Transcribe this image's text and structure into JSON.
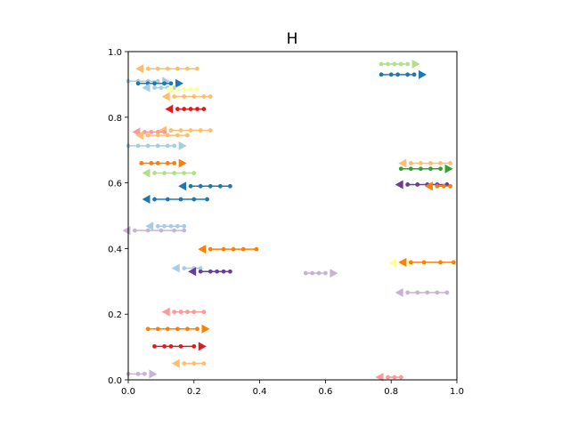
{
  "chart_data": {
    "type": "line",
    "title": "H",
    "xlabel": "",
    "ylabel": "",
    "xlim": [
      0,
      1
    ],
    "ylim": [
      0,
      1
    ],
    "grid": false,
    "xticks": [
      "0.0",
      "0.2",
      "0.4",
      "0.6",
      "0.8",
      "1.0"
    ],
    "yticks": [
      "0.0",
      "0.2",
      "0.4",
      "0.6",
      "0.8",
      "1.0"
    ],
    "series": [
      {
        "color": "#fdbf6f",
        "x": [
          0.06,
          0.09,
          0.12,
          0.15,
          0.18,
          0.21
        ],
        "y": [
          0.948,
          0.948,
          0.948,
          0.948,
          0.948,
          0.948
        ],
        "arrow": "left"
      },
      {
        "color": "#a6cee3",
        "x": [
          0.0,
          0.03,
          0.06,
          0.09
        ],
        "y": [
          0.91,
          0.91,
          0.91,
          0.91
        ],
        "arrow": "right"
      },
      {
        "color": "#1f78b4",
        "x": [
          0.03,
          0.06,
          0.08,
          0.11,
          0.13
        ],
        "y": [
          0.903,
          0.903,
          0.903,
          0.903,
          0.903
        ],
        "arrow": "right"
      },
      {
        "color": "#a6cee3",
        "x": [
          0.08,
          0.1,
          0.12,
          0.14
        ],
        "y": [
          0.89,
          0.89,
          0.89,
          0.89
        ],
        "arrow": "left"
      },
      {
        "color": "#ffff99",
        "x": [
          0.15,
          0.17,
          0.19,
          0.21
        ],
        "y": [
          0.885,
          0.885,
          0.885,
          0.885
        ],
        "arrow": "left"
      },
      {
        "color": "#fdbf6f",
        "x": [
          0.14,
          0.17,
          0.2,
          0.23,
          0.25
        ],
        "y": [
          0.863,
          0.863,
          0.863,
          0.863,
          0.863
        ],
        "arrow": "left"
      },
      {
        "color": "#e31a1c",
        "x": [
          0.15,
          0.17,
          0.19,
          0.21,
          0.23
        ],
        "y": [
          0.825,
          0.825,
          0.825,
          0.825,
          0.825
        ],
        "arrow": "left"
      },
      {
        "color": "#fdbf6f",
        "x": [
          0.13,
          0.16,
          0.19,
          0.22,
          0.25
        ],
        "y": [
          0.76,
          0.76,
          0.76,
          0.76,
          0.76
        ],
        "arrow": "left"
      },
      {
        "color": "#fb9a99",
        "x": [
          0.05,
          0.07,
          0.09,
          0.11
        ],
        "y": [
          0.755,
          0.755,
          0.755,
          0.755
        ],
        "arrow": "left"
      },
      {
        "color": "#fdbf6f",
        "x": [
          0.06,
          0.09,
          0.12,
          0.15,
          0.18
        ],
        "y": [
          0.745,
          0.745,
          0.745,
          0.745,
          0.745
        ],
        "arrow": "left"
      },
      {
        "color": "#a6cee3",
        "x": [
          0.0,
          0.03,
          0.06,
          0.09,
          0.12,
          0.14
        ],
        "y": [
          0.713,
          0.713,
          0.713,
          0.713,
          0.713,
          0.713
        ],
        "arrow": "right"
      },
      {
        "color": "#ff7f00",
        "x": [
          0.04,
          0.07,
          0.09,
          0.12,
          0.14
        ],
        "y": [
          0.66,
          0.66,
          0.66,
          0.66,
          0.66
        ],
        "arrow": "right"
      },
      {
        "color": "#b2df8a",
        "x": [
          0.08,
          0.11,
          0.14,
          0.17,
          0.2
        ],
        "y": [
          0.63,
          0.63,
          0.63,
          0.63,
          0.63
        ],
        "arrow": "left"
      },
      {
        "color": "#1f78b4",
        "x": [
          0.19,
          0.22,
          0.25,
          0.28,
          0.31
        ],
        "y": [
          0.59,
          0.59,
          0.59,
          0.59,
          0.59
        ],
        "arrow": "left"
      },
      {
        "color": "#1f78b4",
        "x": [
          0.08,
          0.12,
          0.16,
          0.2,
          0.24
        ],
        "y": [
          0.55,
          0.55,
          0.55,
          0.55,
          0.55
        ],
        "arrow": "left"
      },
      {
        "color": "#a6cee3",
        "x": [
          0.09,
          0.11,
          0.13,
          0.15,
          0.17
        ],
        "y": [
          0.468,
          0.468,
          0.468,
          0.468,
          0.468
        ],
        "arrow": "left"
      },
      {
        "color": "#cab2d6",
        "x": [
          0.02,
          0.06,
          0.1,
          0.14,
          0.17
        ],
        "y": [
          0.455,
          0.455,
          0.455,
          0.455,
          0.455
        ],
        "arrow": "left"
      },
      {
        "color": "#ff7f00",
        "x": [
          0.25,
          0.29,
          0.32,
          0.35,
          0.39
        ],
        "y": [
          0.398,
          0.398,
          0.398,
          0.398,
          0.398
        ],
        "arrow": "left"
      },
      {
        "color": "#a6cee3",
        "x": [
          0.17,
          0.2,
          0.22
        ],
        "y": [
          0.34,
          0.34,
          0.34
        ],
        "arrow": "left"
      },
      {
        "color": "#6a3d9a",
        "x": [
          0.22,
          0.25,
          0.27,
          0.29,
          0.31
        ],
        "y": [
          0.33,
          0.33,
          0.33,
          0.33,
          0.33
        ],
        "arrow": "left"
      },
      {
        "color": "#cab2d6",
        "x": [
          0.54,
          0.56,
          0.58,
          0.6
        ],
        "y": [
          0.325,
          0.325,
          0.325,
          0.325
        ],
        "arrow": "right"
      },
      {
        "color": "#fb9a99",
        "x": [
          0.14,
          0.16,
          0.18,
          0.2,
          0.23
        ],
        "y": [
          0.207,
          0.207,
          0.207,
          0.207,
          0.207
        ],
        "arrow": "left"
      },
      {
        "color": "#ff7f00",
        "x": [
          0.06,
          0.09,
          0.12,
          0.15,
          0.18,
          0.21
        ],
        "y": [
          0.155,
          0.155,
          0.155,
          0.155,
          0.155,
          0.155
        ],
        "arrow": "right"
      },
      {
        "color": "#e31a1c",
        "x": [
          0.08,
          0.11,
          0.13,
          0.16,
          0.2
        ],
        "y": [
          0.102,
          0.102,
          0.102,
          0.102,
          0.102
        ],
        "arrow": "right"
      },
      {
        "color": "#cab2d6",
        "x": [
          0.0,
          0.03,
          0.05
        ],
        "y": [
          0.018,
          0.018,
          0.018
        ],
        "arrow": "right"
      },
      {
        "color": "#fdbf6f",
        "x": [
          0.17,
          0.2,
          0.23
        ],
        "y": [
          0.05,
          0.05,
          0.05
        ],
        "arrow": "left"
      },
      {
        "color": "#b2df8a",
        "x": [
          0.77,
          0.79,
          0.81,
          0.83,
          0.85
        ],
        "y": [
          0.962,
          0.962,
          0.962,
          0.962,
          0.962
        ],
        "arrow": "right"
      },
      {
        "color": "#1f78b4",
        "x": [
          0.77,
          0.8,
          0.82,
          0.85,
          0.87
        ],
        "y": [
          0.93,
          0.93,
          0.93,
          0.93,
          0.93
        ],
        "arrow": "right"
      },
      {
        "color": "#fdbf6f",
        "x": [
          0.86,
          0.89,
          0.92,
          0.95,
          0.98
        ],
        "y": [
          0.66,
          0.66,
          0.66,
          0.66,
          0.66
        ],
        "arrow": "left"
      },
      {
        "color": "#33a02c",
        "x": [
          0.83,
          0.86,
          0.89,
          0.92,
          0.95
        ],
        "y": [
          0.643,
          0.643,
          0.643,
          0.643,
          0.643
        ],
        "arrow": "right"
      },
      {
        "color": "#6a3d9a",
        "x": [
          0.85,
          0.88,
          0.91,
          0.94,
          0.97
        ],
        "y": [
          0.595,
          0.595,
          0.595,
          0.595,
          0.595
        ],
        "arrow": "left"
      },
      {
        "color": "#ff7f00",
        "x": [
          0.94,
          0.96,
          0.98
        ],
        "y": [
          0.59,
          0.59,
          0.59
        ],
        "arrow": "left"
      },
      {
        "color": "#ffff99",
        "x": [
          0.83,
          0.85
        ],
        "y": [
          0.356,
          0.356
        ],
        "arrow": "left"
      },
      {
        "color": "#ff7f00",
        "x": [
          0.86,
          0.9,
          0.95,
          0.99
        ],
        "y": [
          0.358,
          0.358,
          0.358,
          0.358
        ],
        "arrow": "left"
      },
      {
        "color": "#cab2d6",
        "x": [
          0.85,
          0.88,
          0.91,
          0.94,
          0.97
        ],
        "y": [
          0.266,
          0.266,
          0.266,
          0.266,
          0.266
        ],
        "arrow": "left"
      },
      {
        "color": "#fb9a99",
        "x": [
          0.79,
          0.81,
          0.83
        ],
        "y": [
          0.008,
          0.008,
          0.008
        ],
        "arrow": "left"
      }
    ]
  }
}
